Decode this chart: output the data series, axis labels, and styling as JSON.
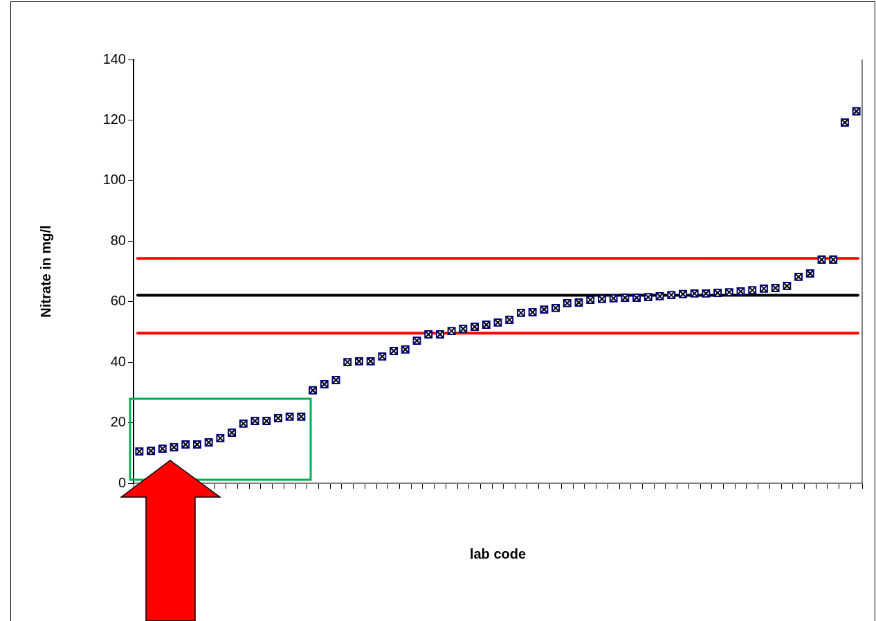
{
  "chart_data": {
    "type": "scatter",
    "xlabel": "lab code",
    "ylabel": "Nitrate in mg/l",
    "categories": [
      null,
      null,
      null,
      null,
      null,
      null,
      null,
      null,
      null,
      null,
      null,
      null,
      null,
      null,
      null,
      null,
      null,
      null,
      null,
      null,
      null,
      null,
      null,
      null,
      null,
      null,
      null,
      null,
      null,
      null,
      null,
      null,
      null,
      null,
      null,
      null,
      null,
      null,
      null,
      null,
      null,
      null,
      null,
      null,
      null,
      null,
      null,
      null,
      null,
      null,
      null,
      null,
      null,
      null,
      null,
      null,
      null,
      null,
      null,
      null,
      null,
      null,
      null
    ],
    "values": [
      10.5,
      10.7,
      11.4,
      11.9,
      12.8,
      12.8,
      13.5,
      14.9,
      16.7,
      19.7,
      20.6,
      20.6,
      21.5,
      22.0,
      22.0,
      30.7,
      32.7,
      34.1,
      40.0,
      40.3,
      40.3,
      41.9,
      43.7,
      44.2,
      47.1,
      49.2,
      49.2,
      50.3,
      51.0,
      51.7,
      52.4,
      53.1,
      54.0,
      56.3,
      56.5,
      57.4,
      57.9,
      59.5,
      59.7,
      60.6,
      60.9,
      61.1,
      61.3,
      61.3,
      61.5,
      61.8,
      62.2,
      62.5,
      62.7,
      62.7,
      62.9,
      63.1,
      63.4,
      63.8,
      64.3,
      64.5,
      65.2,
      68.2,
      69.3,
      73.9,
      73.9,
      119.2,
      122.9
    ],
    "color": "#000080",
    "marker": "square",
    "grid": false,
    "legend": false,
    "ylim": [
      0,
      140
    ],
    "yticks": [
      0,
      20,
      40,
      60,
      80,
      100,
      120,
      140
    ],
    "ref_lines": [
      {
        "axis": "y",
        "value": 62.1,
        "color": "#000000"
      },
      {
        "axis": "y",
        "value": 74.3,
        "color": "#ff0000"
      },
      {
        "axis": "y",
        "value": 49.6,
        "color": "#ff0000"
      }
    ]
  }
}
